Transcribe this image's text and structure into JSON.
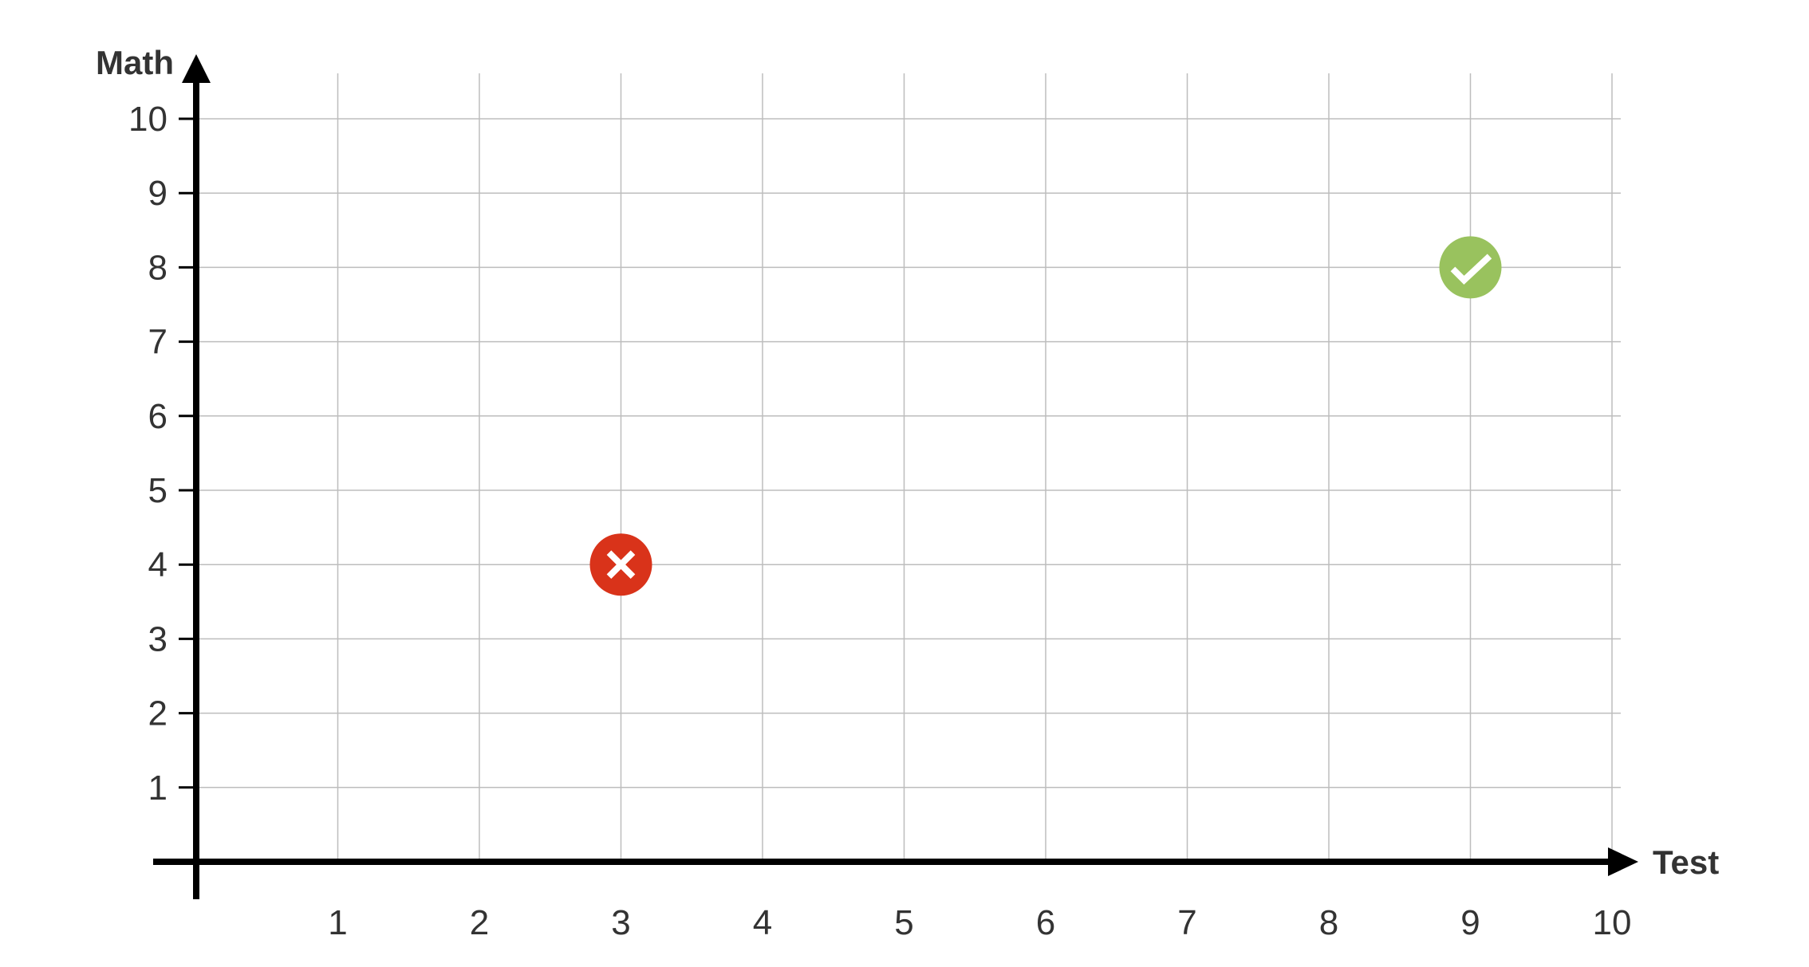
{
  "chart_data": {
    "type": "scatter",
    "title": "",
    "xlabel": "Test",
    "ylabel": "Math",
    "xlim": [
      0,
      10
    ],
    "ylim": [
      0,
      10
    ],
    "x_ticks": [
      "1",
      "2",
      "3",
      "4",
      "5",
      "6",
      "7",
      "8",
      "9",
      "10"
    ],
    "y_ticks": [
      "1",
      "2",
      "3",
      "4",
      "5",
      "6",
      "7",
      "8",
      "9",
      "10"
    ],
    "grid": true,
    "points": [
      {
        "x": 3,
        "y": 4,
        "marker": "x-circle-icon",
        "color": "#d9331a"
      },
      {
        "x": 9,
        "y": 8,
        "marker": "check-circle-icon",
        "color": "#99c25e"
      }
    ]
  }
}
